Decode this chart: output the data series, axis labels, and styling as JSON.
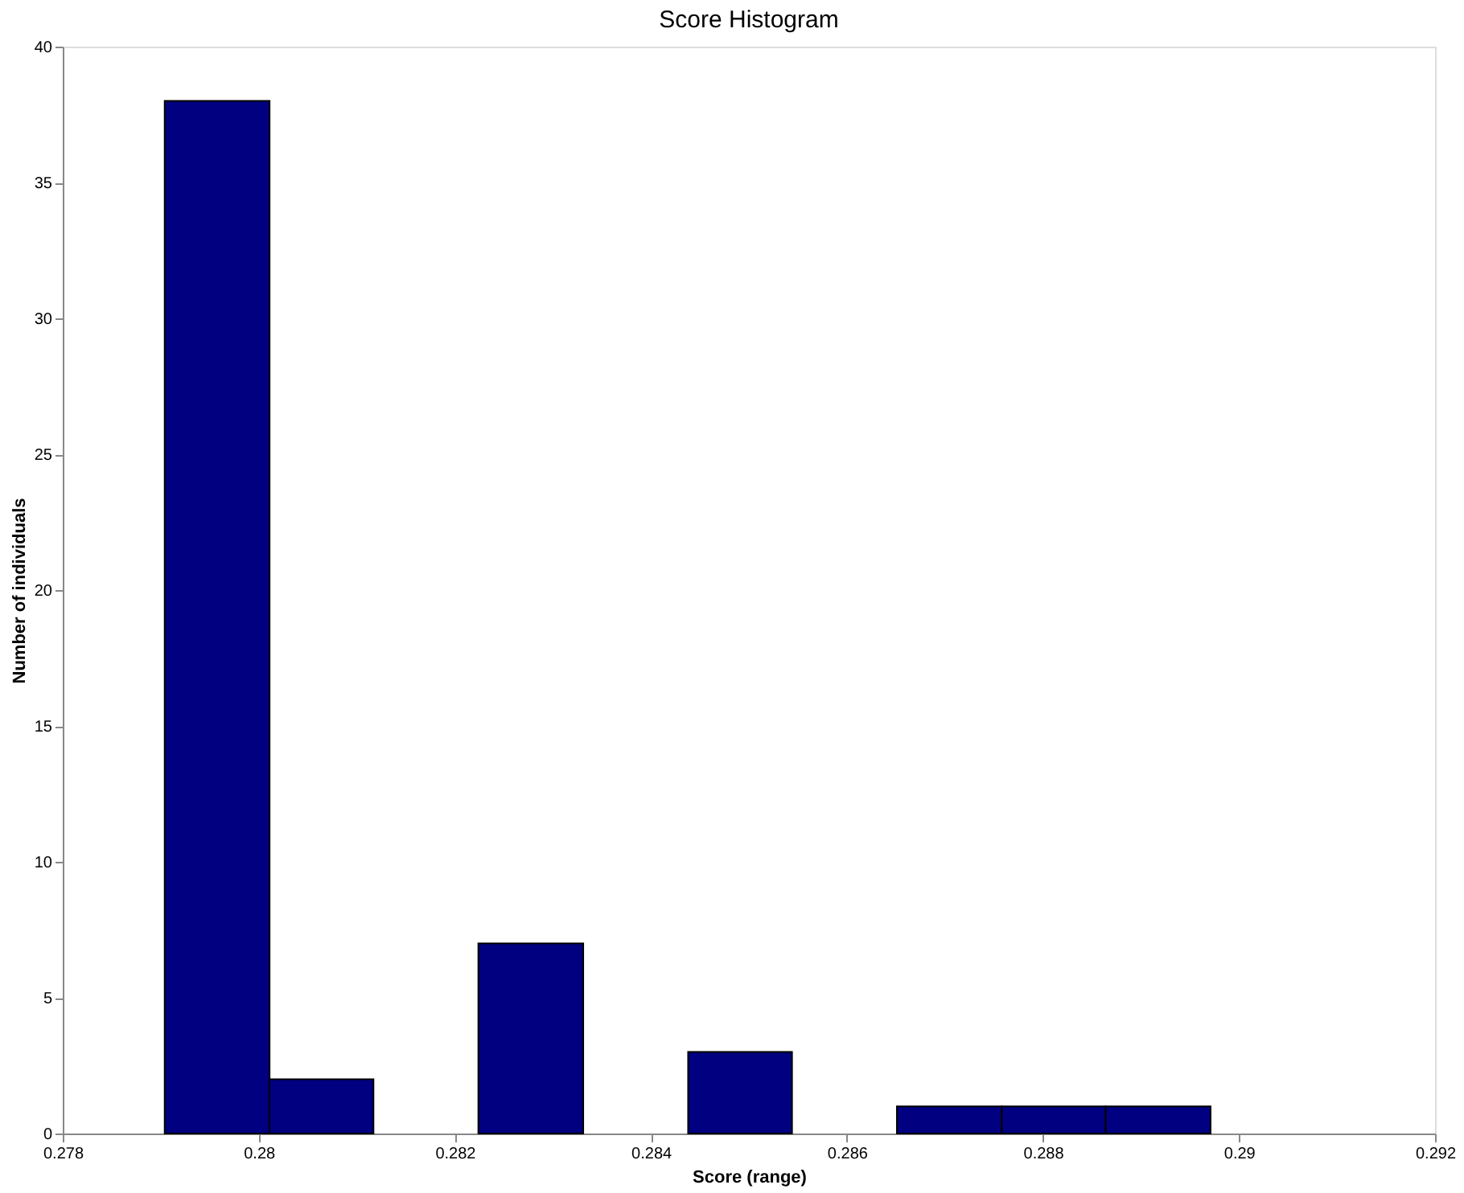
{
  "chart_data": {
    "type": "histogram",
    "title": "Score Histogram",
    "xlabel": "Score (range)",
    "ylabel": "Number of individuals",
    "bins": [
      0.27904,
      0.28011,
      0.28117,
      0.28224,
      0.28331,
      0.28438,
      0.28544,
      0.28651,
      0.28758,
      0.28864,
      0.28971
    ],
    "values": [
      38,
      2,
      0,
      7,
      0,
      3,
      0,
      1,
      1,
      1
    ],
    "color": "#000080",
    "xlim": [
      0.278,
      0.292
    ],
    "xticks": [
      0.278,
      0.28,
      0.282,
      0.284,
      0.286,
      0.288,
      0.29,
      0.292
    ],
    "ylim": [
      0,
      40
    ],
    "yticks": [
      0,
      5,
      10,
      15,
      20,
      25,
      30,
      35,
      40
    ],
    "grid": false
  }
}
